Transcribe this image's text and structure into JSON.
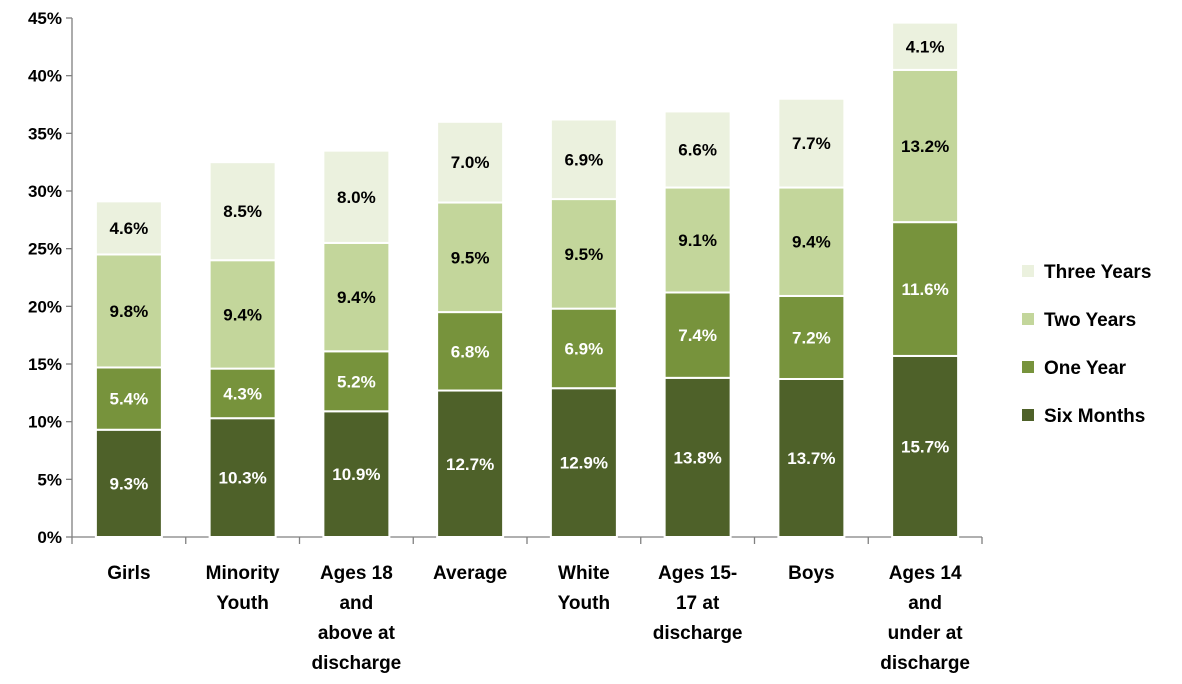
{
  "chart_data": {
    "type": "bar",
    "stacked": true,
    "categories": [
      [
        "Girls"
      ],
      [
        "Minority",
        "Youth"
      ],
      [
        "Ages 18",
        "and",
        "above at",
        "discharge"
      ],
      [
        "Average"
      ],
      [
        "White",
        "Youth"
      ],
      [
        "Ages 15-",
        "17 at",
        "discharge"
      ],
      [
        "Boys"
      ],
      [
        "Ages 14",
        "and",
        "under at",
        "discharge"
      ]
    ],
    "series": [
      {
        "name": "Six Months",
        "color": "#4e6129",
        "label_color": "#ffffff",
        "values": [
          9.3,
          10.3,
          10.9,
          12.7,
          12.9,
          13.8,
          13.7,
          15.7
        ],
        "labels": [
          "9.3%",
          "10.3%",
          "10.9%",
          "12.7%",
          "12.9%",
          "13.8%",
          "13.7%",
          "15.7%"
        ]
      },
      {
        "name": "One Year",
        "color": "#77933c",
        "label_color": "#ffffff",
        "values": [
          5.4,
          4.3,
          5.2,
          6.8,
          6.9,
          7.4,
          7.2,
          11.6
        ],
        "labels": [
          "5.4%",
          "4.3%",
          "5.2%",
          "6.8%",
          "6.9%",
          "7.4%",
          "7.2%",
          "11.6%"
        ]
      },
      {
        "name": "Two Years",
        "color": "#c3d69b",
        "label_color": "#000000",
        "values": [
          9.8,
          9.4,
          9.4,
          9.5,
          9.5,
          9.1,
          9.4,
          13.2
        ],
        "labels": [
          "9.8%",
          "9.4%",
          "9.4%",
          "9.5%",
          "9.5%",
          "9.1%",
          "9.4%",
          "13.2%"
        ]
      },
      {
        "name": "Three Years",
        "color": "#ebf1de",
        "label_color": "#000000",
        "values": [
          4.6,
          8.5,
          8.0,
          7.0,
          6.9,
          6.6,
          7.7,
          4.1
        ],
        "labels": [
          "4.6%",
          "8.5%",
          "8.0%",
          "7.0%",
          "6.9%",
          "6.6%",
          "7.7%",
          "4.1%"
        ]
      }
    ],
    "yticks": [
      "0%",
      "5%",
      "10%",
      "15%",
      "20%",
      "25%",
      "30%",
      "35%",
      "40%",
      "45%"
    ],
    "ylim": [
      0,
      45
    ],
    "title": "",
    "xlabel": "",
    "ylabel": "",
    "grid": false,
    "legend_position": "right",
    "legend_order": [
      "Three Years",
      "Two Years",
      "One Year",
      "Six Months"
    ]
  }
}
